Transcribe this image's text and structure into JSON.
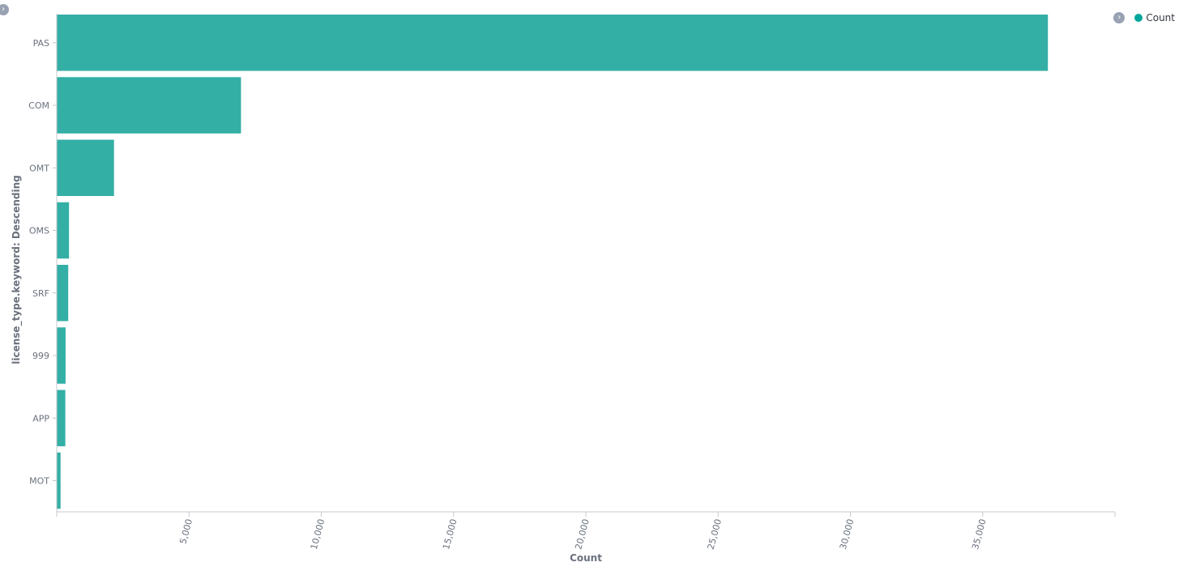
{
  "chart_data": {
    "type": "bar",
    "orientation": "horizontal",
    "categories": [
      "PAS",
      "COM",
      "OMT",
      "OMS",
      "SRF",
      "999",
      "APP",
      "MOT"
    ],
    "values": [
      37450,
      6950,
      2150,
      450,
      420,
      320,
      310,
      130
    ],
    "series": [
      {
        "name": "Count",
        "values": [
          37450,
          6950,
          2150,
          450,
          420,
          320,
          310,
          130
        ]
      }
    ],
    "xlabel": "Count",
    "ylabel": "license_type.keyword: Descending",
    "xlim": [
      0,
      40000
    ],
    "xticks": [
      {
        "value": 5000,
        "label": "5,000"
      },
      {
        "value": 10000,
        "label": "10,000"
      },
      {
        "value": 15000,
        "label": "15,000"
      },
      {
        "value": 20000,
        "label": "20,000"
      },
      {
        "value": 25000,
        "label": "25,000"
      },
      {
        "value": 30000,
        "label": "30,000"
      },
      {
        "value": 35000,
        "label": "35,000"
      }
    ],
    "grid": false,
    "legend_position": "top-right",
    "bar_color": "#34afa5"
  },
  "legend": {
    "items": [
      {
        "label": "Count",
        "color": "#00a69b"
      }
    ]
  },
  "icons": {
    "legend_toggle": "chevron-right-icon",
    "corner_toggle": "chevron-right-icon"
  }
}
